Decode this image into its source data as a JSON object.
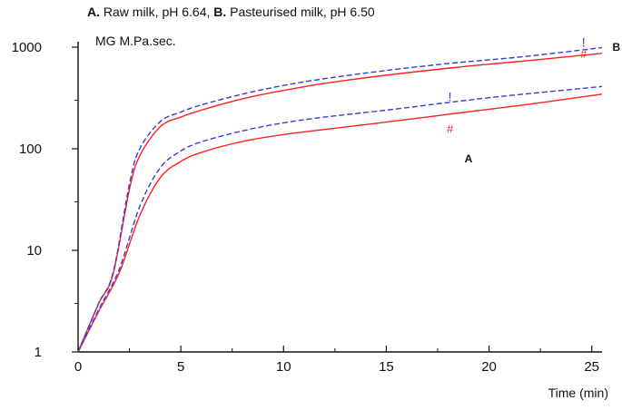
{
  "chart_data": {
    "type": "line",
    "title_parts": [
      {
        "text": "A.",
        "bold": true
      },
      {
        "text": " Raw milk, pH 6.64, ",
        "bold": false
      },
      {
        "text": "B.",
        "bold": true
      },
      {
        "text": " Pasteurised milk, pH 6.50",
        "bold": false
      }
    ],
    "ylabel": "MG M.Pa.sec.",
    "xlabel": "Time (min)",
    "y_scale": "log",
    "xlim": [
      0,
      25.5
    ],
    "ylim": [
      1,
      1000
    ],
    "x_ticks": [
      0,
      5,
      10,
      15,
      20,
      25
    ],
    "y_ticks": [
      1,
      10,
      100,
      1000
    ],
    "x_minor_ticks": [
      2.5,
      7.5,
      12.5,
      17.5,
      22.5
    ],
    "y_minor_ticks": [
      3,
      30,
      300
    ],
    "colors": {
      "red": "#ff2020",
      "blue": "#3a3ad8"
    },
    "series": [
      {
        "name": "A",
        "style": "solid",
        "color": "red",
        "x": [
          0,
          1,
          2,
          3,
          4,
          5,
          6,
          8,
          10,
          12,
          15,
          18,
          20,
          22,
          25.5
        ],
        "y": [
          1,
          2.5,
          6,
          22,
          52,
          75,
          92,
          118,
          138,
          155,
          183,
          218,
          245,
          275,
          345
        ]
      },
      {
        "name": "A",
        "style": "dashed",
        "color": "blue",
        "x": [
          0,
          1,
          2,
          3,
          4,
          5,
          6,
          8,
          10,
          12,
          15,
          18,
          20,
          22,
          25.5
        ],
        "y": [
          1,
          2.6,
          6.5,
          27,
          65,
          95,
          117,
          150,
          180,
          205,
          240,
          285,
          318,
          350,
          410
        ]
      },
      {
        "name": "B",
        "style": "solid",
        "color": "red",
        "x": [
          0,
          1,
          1.7,
          2.5,
          3,
          4,
          5,
          6,
          8,
          10,
          12,
          15,
          18,
          20,
          22,
          25.5
        ],
        "y": [
          1,
          3,
          5.8,
          40,
          85,
          165,
          205,
          240,
          310,
          375,
          440,
          530,
          620,
          680,
          740,
          870
        ]
      },
      {
        "name": "B",
        "style": "dashed",
        "color": "blue",
        "x": [
          0,
          1,
          1.7,
          2.5,
          3,
          4,
          5,
          6,
          8,
          10,
          12,
          15,
          18,
          20,
          22,
          25.5
        ],
        "y": [
          1,
          3,
          6,
          45,
          100,
          185,
          230,
          270,
          345,
          420,
          490,
          590,
          690,
          750,
          820,
          990
        ]
      }
    ],
    "annotations": [
      {
        "text": "A",
        "x": 19,
        "y": 80,
        "color": "#111",
        "bold": true,
        "size": 12
      },
      {
        "text": "B",
        "x": 26.2,
        "y": 1000,
        "color": "#111",
        "bold": true,
        "size": 12
      },
      {
        "text": "#",
        "x": 18.1,
        "y": 155,
        "color": "#ff2020",
        "bold": false,
        "size": 13
      },
      {
        "text": "#",
        "x": 24.6,
        "y": 850,
        "color": "#ff2020",
        "bold": false,
        "size": 13
      },
      {
        "text": "!",
        "x": 18.1,
        "y": 320,
        "color": "#3a3ad8",
        "bold": false,
        "size": 14
      },
      {
        "text": "!",
        "x": 24.6,
        "y": 1100,
        "color": "#3a3ad8",
        "bold": false,
        "size": 14
      }
    ]
  }
}
